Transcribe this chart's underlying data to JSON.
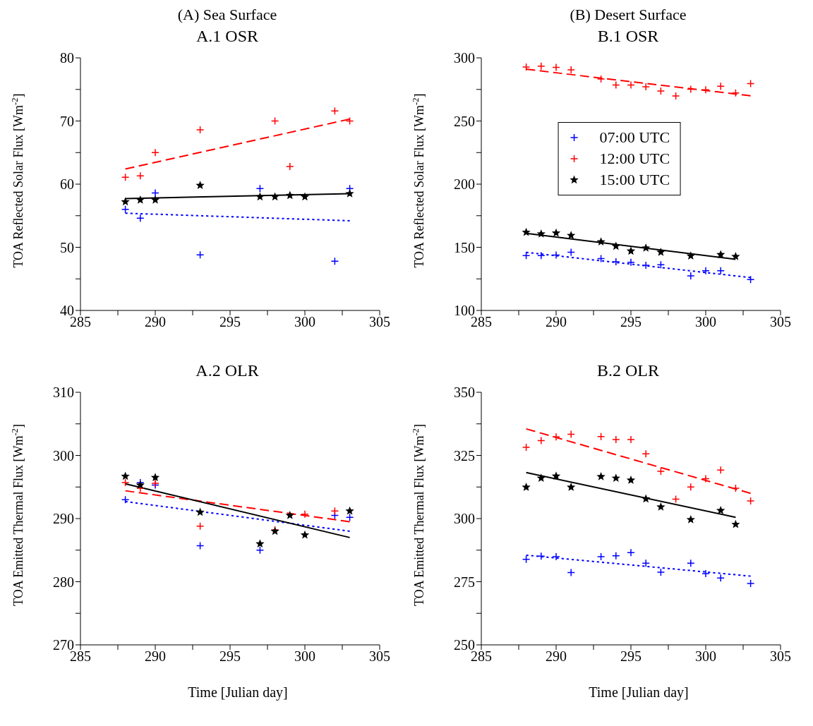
{
  "chart_data": [
    {
      "type": "scatter",
      "title": "A.1 OSR",
      "annotations": [
        "(A) Sea Surface"
      ],
      "ylabel": "TOA Reflected Solar Flux [Wm$^{-2}$]",
      "xlim": [
        285,
        305
      ],
      "xticks": [
        285,
        {
          "value": 287.5,
          "label": null
        },
        290,
        {
          "value": 292.5,
          "label": null
        },
        295,
        {
          "value": 297.5,
          "label": null
        },
        300,
        {
          "value": 302.5,
          "label": null
        },
        305
      ],
      "ylim": [
        40,
        80
      ],
      "yticks": [
        40,
        {
          "value": 45,
          "label": null
        },
        50,
        {
          "value": 55,
          "label": null
        },
        60,
        {
          "value": 65,
          "label": null
        },
        70,
        {
          "value": 75,
          "label": null
        },
        80
      ],
      "grid": false,
      "legend": false,
      "series": [
        {
          "type": "scatter",
          "color": "#0000ff",
          "marker": "cross",
          "x": [
            288,
            289,
            290,
            293,
            297,
            302,
            303
          ],
          "values": [
            56.0,
            54.6,
            58.6,
            48.8,
            59.3,
            47.8,
            59.3
          ]
        },
        {
          "type": "scatter",
          "color": "#ff0000",
          "marker": "cross",
          "x": [
            288,
            289,
            290,
            293,
            298,
            299,
            302,
            303
          ],
          "values": [
            61.1,
            61.3,
            65.0,
            68.6,
            70.0,
            62.8,
            71.6,
            70.0
          ]
        },
        {
          "type": "scatter",
          "color": "#000000",
          "marker": "star",
          "x": [
            288,
            289,
            290,
            293,
            297,
            298,
            299,
            300,
            303
          ],
          "values": [
            57.2,
            57.5,
            57.5,
            59.8,
            58.0,
            58.0,
            58.2,
            58.0,
            58.5
          ]
        },
        {
          "type": "line",
          "color": "#0000ff",
          "line_style": "dotted",
          "x": [
            288,
            303
          ],
          "values": [
            55.4,
            54.2
          ]
        },
        {
          "type": "line",
          "color": "#ff0000",
          "line_style": "dashed",
          "x": [
            288,
            303
          ],
          "values": [
            62.4,
            70.3
          ]
        },
        {
          "type": "line",
          "color": "#000000",
          "line_style": "solid",
          "x": [
            288,
            303
          ],
          "values": [
            57.7,
            58.5
          ]
        }
      ]
    },
    {
      "type": "scatter",
      "title": "B.1 OSR",
      "annotations": [
        "(B) Desert Surface"
      ],
      "ylabel": "TOA Reflected Solar Flux [Wm$^{-2}$]",
      "xlim": [
        285,
        305
      ],
      "xticks": [
        285,
        {
          "value": 287.5,
          "label": null
        },
        290,
        {
          "value": 292.5,
          "label": null
        },
        295,
        {
          "value": 297.5,
          "label": null
        },
        300,
        {
          "value": 302.5,
          "label": null
        },
        305
      ],
      "ylim": [
        100,
        300
      ],
      "yticks": [
        100,
        {
          "value": 125,
          "label": null
        },
        150,
        {
          "value": 175,
          "label": null
        },
        200,
        {
          "value": 225,
          "label": null
        },
        250,
        {
          "value": 275,
          "label": null
        },
        300
      ],
      "grid": false,
      "legend": "top",
      "series": [
        {
          "type": "scatter",
          "name": "07:00 UTC",
          "color": "#0000ff",
          "marker": "cross",
          "x": [
            288,
            289,
            290,
            291,
            293,
            294,
            295,
            296,
            297,
            299,
            300,
            301,
            303
          ],
          "values": [
            143.4,
            143.4,
            143.8,
            146.1,
            141.1,
            138.5,
            138.1,
            135.8,
            136.2,
            127.4,
            131.4,
            131.4,
            124.4
          ]
        },
        {
          "type": "scatter",
          "name": "12:00 UTC",
          "color": "#ff0000",
          "marker": "cross",
          "x": [
            288,
            289,
            290,
            291,
            293,
            294,
            295,
            296,
            297,
            298,
            299,
            300,
            301,
            302,
            303
          ],
          "values": [
            292.8,
            293.5,
            292.4,
            290.5,
            283.2,
            278.5,
            278.5,
            277.1,
            273.7,
            269.9,
            275.2,
            274.7,
            277.5,
            272.2,
            279.6
          ]
        },
        {
          "type": "scatter",
          "name": "15:00 UTC",
          "color": "#000000",
          "marker": "star",
          "x": [
            288,
            289,
            290,
            291,
            293,
            294,
            295,
            296,
            297,
            299,
            301,
            302
          ],
          "values": [
            161.9,
            160.6,
            161.3,
            159.4,
            154.3,
            150.9,
            147.0,
            149.5,
            146.1,
            143.2,
            144.2,
            142.7
          ]
        },
        {
          "type": "line",
          "color": "#0000ff",
          "line_style": "dotted",
          "x": [
            288,
            303
          ],
          "values": [
            146,
            126
          ]
        },
        {
          "type": "line",
          "color": "#ff0000",
          "line_style": "dashed",
          "x": [
            288,
            303
          ],
          "values": [
            291,
            270
          ]
        },
        {
          "type": "line",
          "color": "#000000",
          "line_style": "solid",
          "x": [
            288,
            302
          ],
          "values": [
            161,
            140.5
          ]
        }
      ]
    },
    {
      "type": "scatter",
      "title": "A.2 OLR",
      "xlabel": "Time [Julian day]",
      "ylabel": "TOA Emitted Thermal Flux [Wm$^{-2}$]",
      "xlim": [
        285,
        305
      ],
      "xticks": [
        285,
        {
          "value": 287.5,
          "label": null
        },
        290,
        {
          "value": 292.5,
          "label": null
        },
        295,
        {
          "value": 297.5,
          "label": null
        },
        300,
        {
          "value": 302.5,
          "label": null
        },
        305
      ],
      "ylim": [
        270,
        310
      ],
      "yticks": [
        270,
        {
          "value": 275,
          "label": null
        },
        280,
        {
          "value": 285,
          "label": null
        },
        290,
        {
          "value": 295,
          "label": null
        },
        300,
        {
          "value": 305,
          "label": null
        },
        310
      ],
      "grid": false,
      "legend": false,
      "series": [
        {
          "type": "scatter",
          "color": "#0000ff",
          "marker": "cross",
          "x": [
            288,
            289,
            290,
            293,
            297,
            302,
            303
          ],
          "values": [
            293.0,
            295.7,
            295.3,
            285.7,
            285.0,
            290.5,
            290.2
          ]
        },
        {
          "type": "scatter",
          "color": "#ff0000",
          "marker": "cross",
          "x": [
            288,
            289,
            290,
            293,
            298,
            300,
            302
          ],
          "values": [
            295.7,
            294.8,
            295.6,
            288.8,
            288.2,
            290.7,
            291.2
          ]
        },
        {
          "type": "scatter",
          "color": "#000000",
          "marker": "star",
          "x": [
            288,
            289,
            290,
            293,
            297,
            298,
            299,
            300,
            303
          ],
          "values": [
            296.7,
            295.3,
            296.5,
            291.0,
            286.0,
            288.0,
            290.5,
            287.4,
            291.2
          ]
        },
        {
          "type": "line",
          "color": "#0000ff",
          "line_style": "dotted",
          "x": [
            288,
            303
          ],
          "values": [
            292.7,
            288.0
          ]
        },
        {
          "type": "line",
          "color": "#ff0000",
          "line_style": "dashed",
          "x": [
            288,
            303
          ],
          "values": [
            294.4,
            289.5
          ]
        },
        {
          "type": "line",
          "color": "#000000",
          "line_style": "solid",
          "x": [
            288,
            303
          ],
          "values": [
            295.5,
            287.0
          ]
        }
      ]
    },
    {
      "type": "scatter",
      "title": "B.2 OLR",
      "xlabel": "Time [Julian day]",
      "ylabel": "TOA Emitted Thermal Flux [Wm$^{-2}$]",
      "xlim": [
        285,
        305
      ],
      "xticks": [
        285,
        {
          "value": 287.5,
          "label": null
        },
        290,
        {
          "value": 292.5,
          "label": null
        },
        295,
        {
          "value": 297.5,
          "label": null
        },
        300,
        {
          "value": 302.5,
          "label": null
        },
        305
      ],
      "ylim": [
        250,
        350
      ],
      "yticks": [
        250,
        {
          "value": 262.5,
          "label": null
        },
        275,
        {
          "value": 287.5,
          "label": null
        },
        300,
        {
          "value": 312.5,
          "label": null
        },
        325,
        {
          "value": 337.5,
          "label": null
        },
        350
      ],
      "grid": false,
      "legend": false,
      "series": [
        {
          "type": "scatter",
          "color": "#0000ff",
          "marker": "cross",
          "x": [
            288,
            289,
            290,
            291,
            293,
            294,
            295,
            296,
            297,
            299,
            300,
            301,
            303
          ],
          "values": [
            283.9,
            285.1,
            284.9,
            278.6,
            284.9,
            285.3,
            286.5,
            282.3,
            278.8,
            282.3,
            278.2,
            276.5,
            274.3
          ]
        },
        {
          "type": "scatter",
          "color": "#ff0000",
          "marker": "cross",
          "x": [
            288,
            289,
            290,
            291,
            293,
            294,
            295,
            296,
            297,
            298,
            299,
            300,
            301,
            302,
            303
          ],
          "values": [
            328.2,
            330.9,
            332.3,
            333.4,
            332.5,
            331.3,
            331.3,
            325.6,
            318.7,
            307.7,
            312.5,
            315.8,
            319.2,
            312.0,
            307.0
          ]
        },
        {
          "type": "scatter",
          "color": "#000000",
          "marker": "star",
          "x": [
            288,
            289,
            290,
            291,
            293,
            294,
            295,
            296,
            297,
            299,
            301,
            302
          ],
          "values": [
            312.4,
            316.0,
            316.8,
            312.4,
            316.6,
            316.0,
            315.2,
            307.8,
            304.6,
            299.6,
            303.2,
            297.7
          ]
        },
        {
          "type": "line",
          "color": "#0000ff",
          "line_style": "dotted",
          "x": [
            288,
            303
          ],
          "values": [
            285.5,
            277.2
          ]
        },
        {
          "type": "line",
          "color": "#ff0000",
          "line_style": "dashed",
          "x": [
            288,
            303
          ],
          "values": [
            335.5,
            310
          ]
        },
        {
          "type": "line",
          "color": "#000000",
          "line_style": "solid",
          "x": [
            288,
            302
          ],
          "values": [
            318.2,
            300.5
          ]
        }
      ]
    }
  ]
}
